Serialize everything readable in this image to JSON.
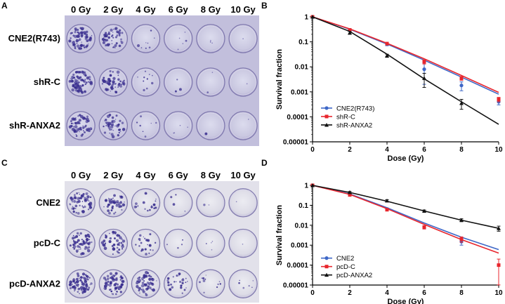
{
  "panels": {
    "A": {
      "letter": "A",
      "dose_labels": [
        "0 Gy",
        "2 Gy",
        "4 Gy",
        "6 Gy",
        "8 Gy",
        "10 Gy"
      ],
      "row_labels": [
        "CNE2(R743)",
        "shR-C",
        "shR-ANXA2"
      ],
      "colony_density": [
        [
          1.0,
          0.75,
          0.12,
          0.03,
          0.02,
          0.0
        ],
        [
          1.0,
          0.8,
          0.14,
          0.04,
          0.02,
          0.0
        ],
        [
          0.85,
          0.6,
          0.1,
          0.03,
          0.01,
          0.0
        ]
      ]
    },
    "B": {
      "letter": "B",
      "chart_index": 0
    },
    "C": {
      "letter": "C",
      "dose_labels": [
        "0 Gy",
        "2 Gy",
        "4 Gy",
        "6 Gy",
        "8 Gy",
        "10 Gy"
      ],
      "row_labels": [
        "CNE2",
        "pcD-C",
        "pcD-ANXA2"
      ],
      "colony_density": [
        [
          0.8,
          0.6,
          0.25,
          0.06,
          0.01,
          0.0
        ],
        [
          0.85,
          0.65,
          0.3,
          0.06,
          0.01,
          0.0
        ],
        [
          1.0,
          0.95,
          0.75,
          0.4,
          0.15,
          0.08
        ]
      ]
    },
    "D": {
      "letter": "D",
      "chart_index": 1
    }
  },
  "chart_data": [
    {
      "type": "line",
      "xlabel": "Dose (Gy)",
      "ylabel": "Survival fraction",
      "x_ticks": [
        "0",
        "2",
        "4",
        "6",
        "8",
        "10"
      ],
      "y_ticks": [
        "1",
        "0.1",
        "0.01",
        "0.001",
        "0.0001",
        "0.00001"
      ],
      "xlim": [
        0,
        10
      ],
      "ylim": [
        1e-05,
        1
      ],
      "y_scale": "log",
      "legend_position": "lower-left",
      "series": [
        {
          "name": "CNE2(R743)",
          "color": "#3e67c7",
          "marker": "circle",
          "x": [
            0,
            2,
            4,
            6,
            8,
            10
          ],
          "y": [
            1,
            0.3,
            0.08,
            0.008,
            0.0018,
            0.0004
          ],
          "err": [
            0,
            0.04,
            0.01,
            0.006,
            0.0007,
            0.0001
          ],
          "fit": [
            1,
            0.32,
            0.082,
            0.0185,
            0.0039,
            0.0008
          ]
        },
        {
          "name": "shR-C",
          "color": "#e8262d",
          "marker": "square",
          "x": [
            0,
            2,
            4,
            6,
            8,
            10
          ],
          "y": [
            1,
            0.3,
            0.085,
            0.016,
            0.0035,
            0.0005
          ],
          "err": [
            0,
            0.03,
            0.01,
            0.003,
            0.0006,
            0.0001
          ],
          "fit": [
            1,
            0.33,
            0.088,
            0.021,
            0.0045,
            0.00095
          ]
        },
        {
          "name": "shR-ANXA2",
          "color": "#111111",
          "marker": "triangle",
          "x": [
            0,
            2,
            4,
            6,
            8,
            10
          ],
          "y": [
            1,
            0.23,
            0.028,
            0.0035,
            0.00035,
            null
          ],
          "err": [
            0,
            0.03,
            0.004,
            0.002,
            0.00015,
            null
          ],
          "fit": [
            1,
            0.26,
            0.032,
            0.0033,
            0.0004,
            5e-05
          ]
        }
      ]
    },
    {
      "type": "line",
      "xlabel": "Dose (Gy)",
      "ylabel": "Survival fraction",
      "x_ticks": [
        "0",
        "2",
        "4",
        "6",
        "8",
        "10"
      ],
      "y_ticks": [
        "1",
        "0.1",
        "0.01",
        "0.001",
        "0.0001",
        "0.00001"
      ],
      "xlim": [
        0,
        10
      ],
      "ylim": [
        1e-05,
        1
      ],
      "y_scale": "log",
      "legend_position": "lower-left",
      "series": [
        {
          "name": "CNE2",
          "color": "#3e67c7",
          "marker": "circle",
          "x": [
            0,
            2,
            4,
            6,
            8,
            10
          ],
          "y": [
            1,
            0.35,
            0.065,
            0.008,
            0.0015,
            null
          ],
          "err": [
            0,
            0.04,
            0.008,
            0.0015,
            0.0005,
            null
          ],
          "fit": [
            1,
            0.37,
            0.075,
            0.013,
            0.0025,
            0.0006
          ]
        },
        {
          "name": "pcD-C",
          "color": "#e8262d",
          "marker": "square",
          "x": [
            0,
            2,
            4,
            6,
            8,
            10
          ],
          "y": [
            1,
            0.33,
            0.06,
            0.008,
            0.002,
            0.0001
          ],
          "err": [
            0,
            0.03,
            0.008,
            0.0015,
            0.0006,
            0.0001
          ],
          "fit": [
            1,
            0.35,
            0.068,
            0.011,
            0.0019,
            0.0004
          ]
        },
        {
          "name": "pcD-ANXA2",
          "color": "#111111",
          "marker": "triangle",
          "x": [
            0,
            2,
            4,
            6,
            8,
            10
          ],
          "y": [
            1,
            0.45,
            0.17,
            0.052,
            0.018,
            0.007
          ],
          "err": [
            0,
            0.04,
            0.02,
            0.006,
            0.003,
            0.002
          ],
          "fit": [
            1,
            0.44,
            0.16,
            0.052,
            0.018,
            0.007
          ]
        }
      ]
    }
  ]
}
